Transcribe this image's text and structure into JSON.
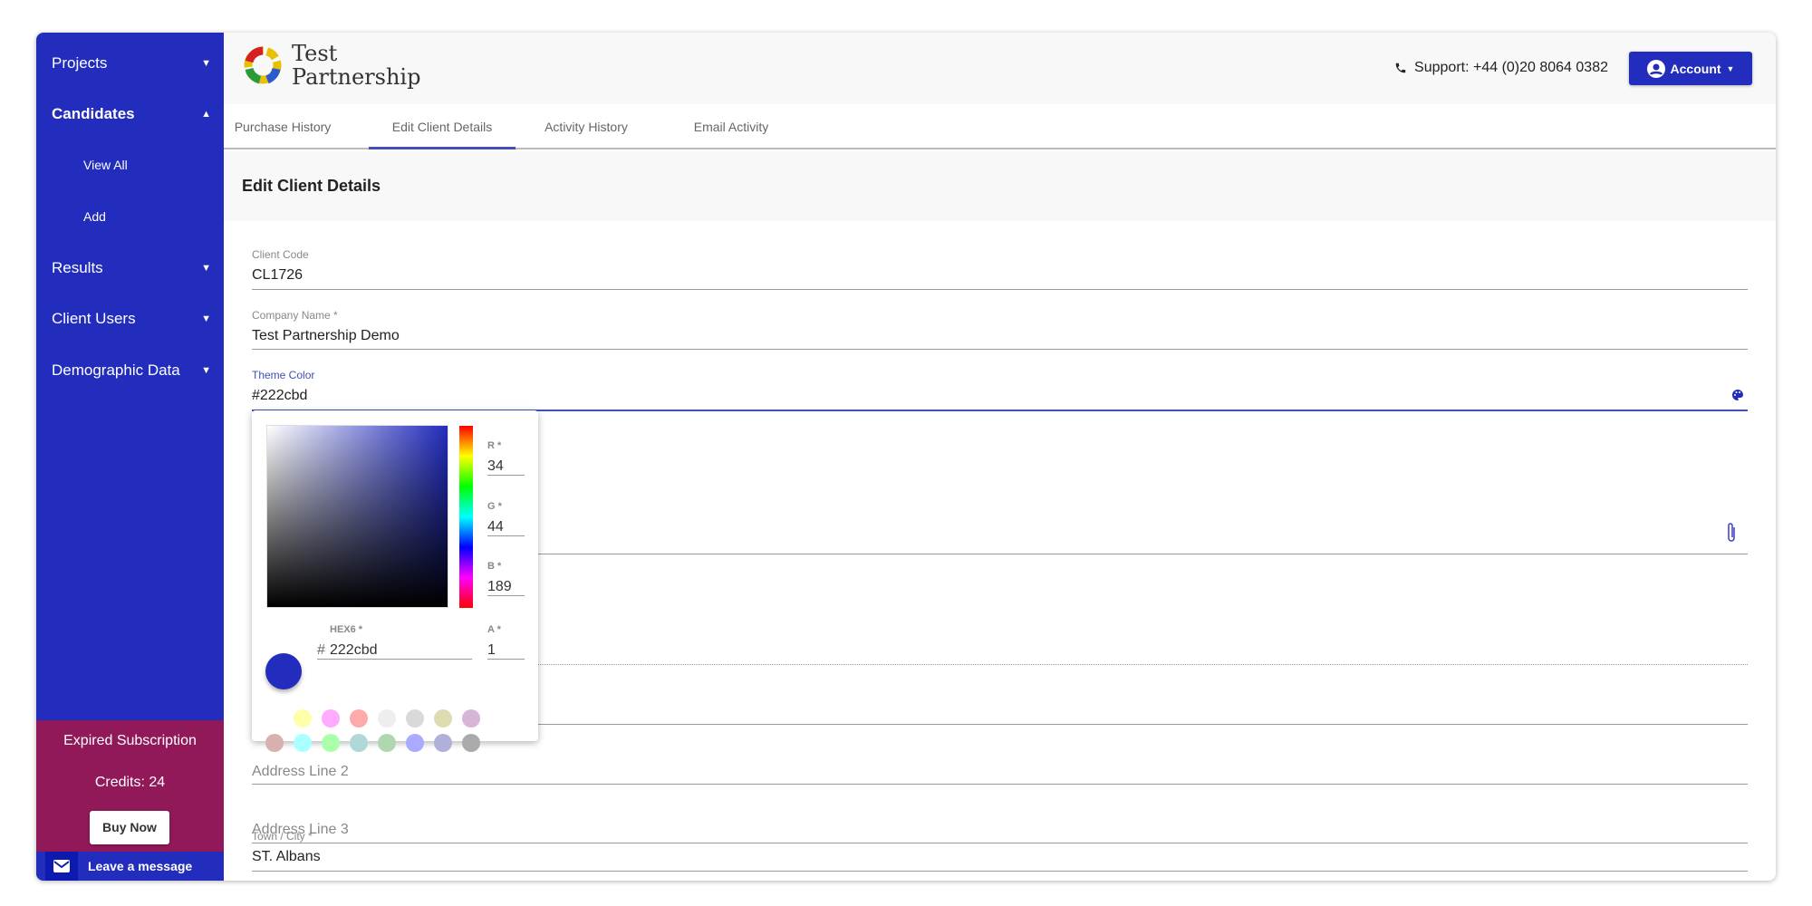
{
  "sidebar": {
    "items": [
      {
        "label": "Projects",
        "icon": "caret-down"
      },
      {
        "label": "Candidates",
        "icon": "caret-up"
      },
      {
        "label": "View All"
      },
      {
        "label": "Add"
      },
      {
        "label": "Results",
        "icon": "caret-down"
      },
      {
        "label": "Client Users",
        "icon": "caret-down"
      },
      {
        "label": "Demographic Data",
        "icon": "caret-down"
      }
    ],
    "subscription_status": "Expired Subscription",
    "credits": "Credits: 24",
    "buy_now": "Buy Now",
    "leave_message": "Leave a message",
    "color": "#222cbd",
    "promo_color": "#91195a"
  },
  "header": {
    "logo_line1": "Test",
    "logo_line2": "Partnership",
    "support": "Support: +44 (0)20 8064 0382",
    "account": "Account"
  },
  "tabs": [
    {
      "label": "Purchase History"
    },
    {
      "label": "Edit Client Details",
      "active": true
    },
    {
      "label": "Activity History"
    },
    {
      "label": "Email Activity"
    }
  ],
  "page_title": "Edit Client Details",
  "form": {
    "client_code": {
      "label": "Client Code",
      "value": "CL1726"
    },
    "company_name": {
      "label": "Company Name *",
      "value": "Test Partnership Demo"
    },
    "theme_color": {
      "label": "Theme Color",
      "value": "#222cbd"
    },
    "address_line_2": {
      "placeholder": "Address Line 2"
    },
    "address_line_3": {
      "placeholder": "Address Line 3"
    },
    "town_city": {
      "label": "Town / City *",
      "value": "ST. Albans"
    }
  },
  "color_picker": {
    "r": {
      "label": "R *",
      "value": "34"
    },
    "g": {
      "label": "G *",
      "value": "44"
    },
    "b": {
      "label": "B *",
      "value": "189"
    },
    "hex": {
      "label": "HEX6 *",
      "prefix": "#",
      "value": "222cbd"
    },
    "a": {
      "label": "A *",
      "value": "1"
    },
    "swatches_row1": [
      "#ffffaa",
      "#ffaaff",
      "#ffaaaa",
      "#eeeeee",
      "#d9d9d9",
      "#dcdcb0",
      "#d8b4d8"
    ],
    "swatches_row2": [
      "#d8b0b0",
      "#aaffff",
      "#aaffaa",
      "#b0d8d8",
      "#b0d8b0",
      "#aaaaff",
      "#b0b0d8",
      "#aaaaaa"
    ]
  }
}
